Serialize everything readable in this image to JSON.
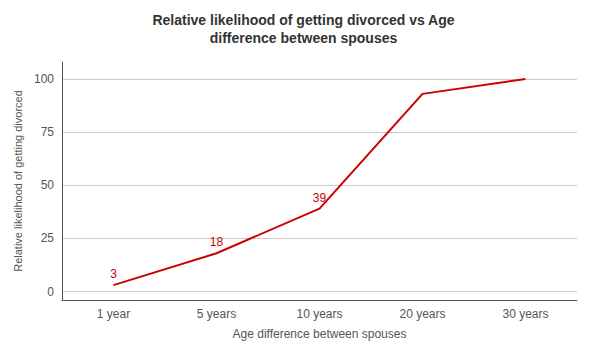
{
  "chart_data": {
    "type": "line",
    "title": "Relative likelihood of getting divorced vs Age\ndifference between spouses",
    "x_label": "Age difference between spouses",
    "y_label": "Relative likelihood of getting divorced",
    "categories": [
      "1 year",
      "5 years",
      "10 years",
      "20 years",
      "30 years"
    ],
    "values": [
      3,
      18,
      39,
      93,
      100
    ],
    "color": "#cc0000",
    "ylim": [
      -4,
      108
    ],
    "yticks": [
      0,
      25,
      50,
      75,
      100
    ],
    "grid": true,
    "annotations": [
      {
        "x": "1 year",
        "y": 3,
        "text": "3"
      },
      {
        "x": "5 years",
        "y": 18,
        "text": "18"
      },
      {
        "x": "10 years",
        "y": 39,
        "text": "39"
      }
    ]
  }
}
